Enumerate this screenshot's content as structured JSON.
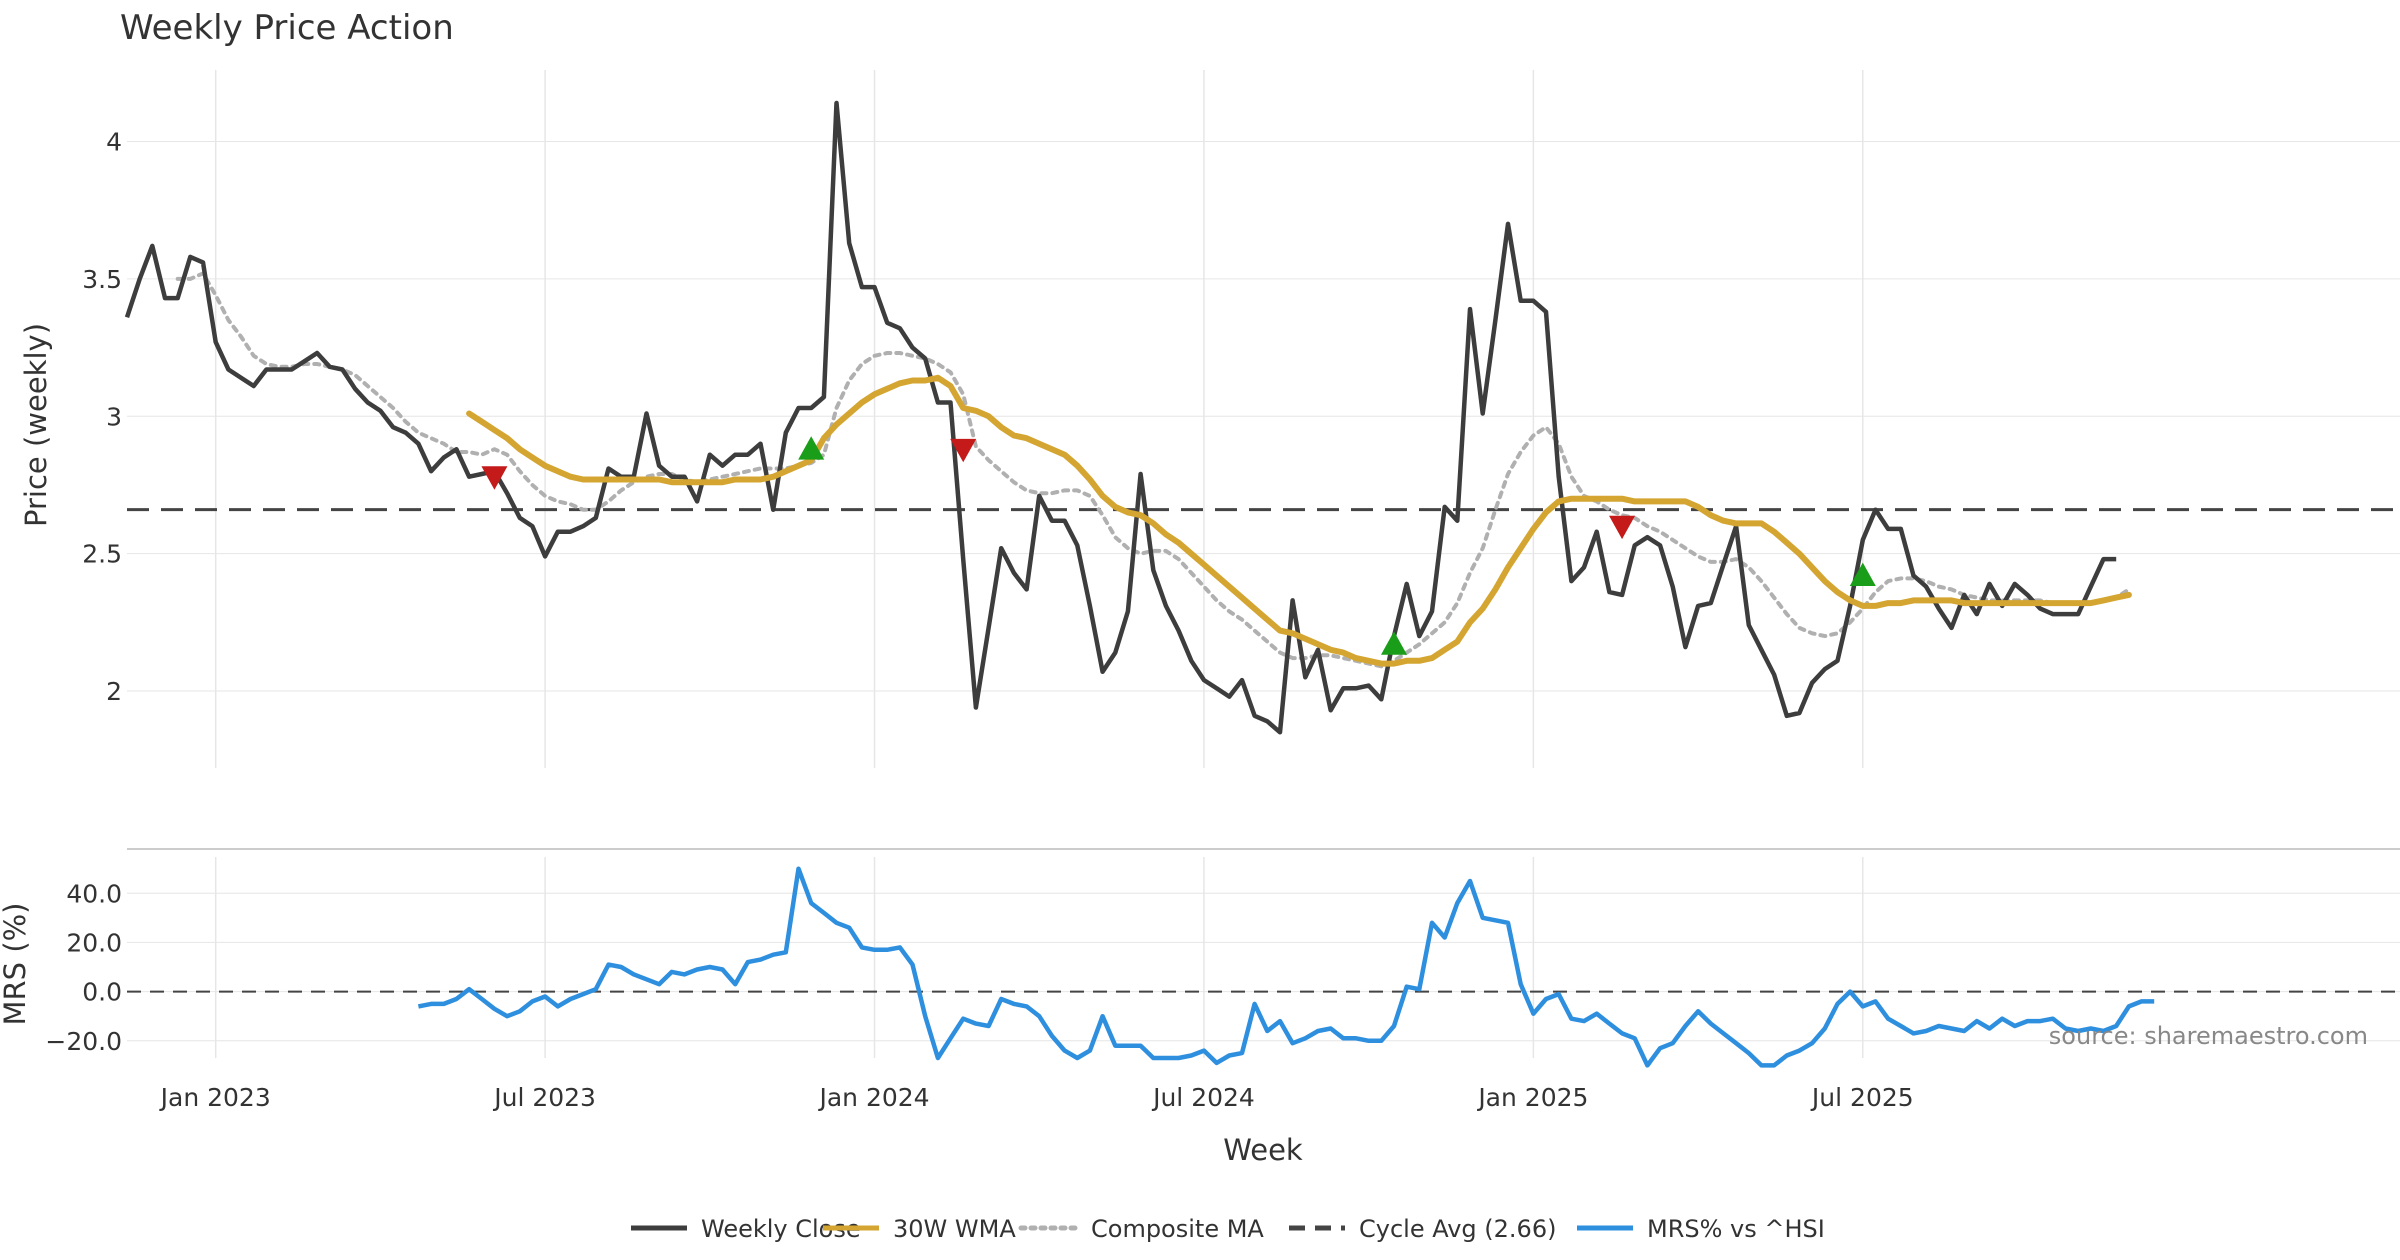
{
  "colors": {
    "close": "#3d3d3d",
    "wma": "#d4a530",
    "composite": "#b0b0b0",
    "cycle": "#444444",
    "mrs": "#2e8fdf",
    "buy": "#1a9e1a",
    "sell": "#c41a1a",
    "grid": "#e6e6e6"
  },
  "chart_data": [
    {
      "type": "line",
      "title": "Weekly Price Action",
      "xlabel": "",
      "ylabel": "Price (weekly)",
      "x_start": "2022-11-14",
      "x_step_days": 7,
      "ylim": [
        1.72,
        4.26
      ],
      "yticks": [
        2,
        2.5,
        3,
        3.5,
        4
      ],
      "ytick_labels": [
        "2",
        "2.5",
        "3",
        "3.5",
        "4"
      ],
      "grid": true,
      "series": [
        {
          "name": "Weekly Close",
          "values": [
            3.36,
            3.5,
            3.62,
            3.43,
            3.43,
            3.58,
            3.56,
            3.27,
            3.17,
            3.14,
            3.11,
            3.17,
            3.17,
            3.17,
            3.2,
            3.23,
            3.18,
            3.17,
            3.1,
            3.05,
            3.02,
            2.96,
            2.94,
            2.9,
            2.8,
            2.85,
            2.88,
            2.78,
            2.79,
            2.8,
            2.72,
            2.63,
            2.6,
            2.49,
            2.58,
            2.58,
            2.6,
            2.63,
            2.81,
            2.78,
            2.78,
            3.01,
            2.82,
            2.78,
            2.78,
            2.69,
            2.86,
            2.82,
            2.86,
            2.86,
            2.9,
            2.66,
            2.94,
            3.03,
            3.03,
            3.07,
            4.14,
            3.63,
            3.47,
            3.47,
            3.34,
            3.32,
            3.25,
            3.21,
            3.05,
            3.05,
            2.48,
            1.94,
            2.23,
            2.52,
            2.43,
            2.37,
            2.71,
            2.62,
            2.62,
            2.53,
            2.31,
            2.07,
            2.14,
            2.29,
            2.79,
            2.44,
            2.31,
            2.22,
            2.11,
            2.04,
            2.01,
            1.98,
            2.04,
            1.91,
            1.89,
            1.85,
            2.33,
            2.05,
            2.15,
            1.93,
            2.01,
            2.01,
            2.02,
            1.97,
            2.2,
            2.39,
            2.2,
            2.29,
            2.67,
            2.62,
            3.39,
            3.01,
            3.35,
            3.7,
            3.42,
            3.42,
            3.38,
            2.78,
            2.4,
            2.45,
            2.58,
            2.36,
            2.35,
            2.53,
            2.56,
            2.53,
            2.38,
            2.16,
            2.31,
            2.32,
            2.46,
            2.6,
            2.24,
            2.15,
            2.06,
            1.91,
            1.92,
            2.03,
            2.08,
            2.11,
            2.31,
            2.55,
            2.66,
            2.59,
            2.59,
            2.42,
            2.38,
            2.3,
            2.23,
            2.35,
            2.28,
            2.39,
            2.31,
            2.39,
            2.35,
            2.3,
            2.28,
            2.28,
            2.28,
            2.38,
            2.48,
            2.48
          ]
        },
        {
          "name": "30W WMA",
          "values": [
            null,
            null,
            null,
            null,
            null,
            null,
            null,
            null,
            null,
            null,
            null,
            null,
            null,
            null,
            null,
            null,
            null,
            null,
            null,
            null,
            null,
            null,
            null,
            null,
            null,
            null,
            null,
            3.01,
            2.98,
            2.95,
            2.92,
            2.88,
            2.85,
            2.82,
            2.8,
            2.78,
            2.77,
            2.77,
            2.77,
            2.77,
            2.77,
            2.77,
            2.77,
            2.76,
            2.76,
            2.76,
            2.76,
            2.76,
            2.77,
            2.77,
            2.77,
            2.78,
            2.8,
            2.82,
            2.84,
            2.92,
            2.97,
            3.01,
            3.05,
            3.08,
            3.1,
            3.12,
            3.13,
            3.13,
            3.14,
            3.11,
            3.03,
            3.02,
            3.0,
            2.96,
            2.93,
            2.92,
            2.9,
            2.88,
            2.86,
            2.82,
            2.77,
            2.71,
            2.67,
            2.65,
            2.64,
            2.61,
            2.57,
            2.54,
            2.5,
            2.46,
            2.42,
            2.38,
            2.34,
            2.3,
            2.26,
            2.22,
            2.21,
            2.19,
            2.17,
            2.15,
            2.14,
            2.12,
            2.11,
            2.1,
            2.1,
            2.11,
            2.11,
            2.12,
            2.15,
            2.18,
            2.25,
            2.3,
            2.37,
            2.45,
            2.52,
            2.59,
            2.65,
            2.69,
            2.7,
            2.7,
            2.7,
            2.7,
            2.7,
            2.69,
            2.69,
            2.69,
            2.69,
            2.69,
            2.67,
            2.64,
            2.62,
            2.61,
            2.61,
            2.61,
            2.58,
            2.54,
            2.5,
            2.45,
            2.4,
            2.36,
            2.33,
            2.31,
            2.31,
            2.32,
            2.32,
            2.33,
            2.33,
            2.33,
            2.33,
            2.32,
            2.32,
            2.32,
            2.32,
            2.32,
            2.32,
            2.32,
            2.32,
            2.32,
            2.32,
            2.32,
            2.33,
            2.34,
            2.35
          ]
        },
        {
          "name": "Composite MA",
          "values": [
            null,
            null,
            null,
            null,
            3.5,
            3.5,
            3.52,
            3.44,
            3.35,
            3.29,
            3.22,
            3.19,
            3.18,
            3.18,
            3.19,
            3.19,
            3.18,
            3.17,
            3.15,
            3.11,
            3.07,
            3.03,
            2.98,
            2.94,
            2.92,
            2.9,
            2.87,
            2.87,
            2.86,
            2.88,
            2.86,
            2.8,
            2.75,
            2.71,
            2.69,
            2.68,
            2.66,
            2.66,
            2.69,
            2.73,
            2.76,
            2.78,
            2.79,
            2.79,
            2.77,
            2.76,
            2.77,
            2.78,
            2.79,
            2.8,
            2.81,
            2.81,
            2.81,
            2.82,
            2.83,
            2.86,
            3.03,
            3.13,
            3.19,
            3.22,
            3.23,
            3.23,
            3.22,
            3.21,
            3.19,
            3.16,
            3.08,
            2.89,
            2.84,
            2.8,
            2.76,
            2.73,
            2.72,
            2.72,
            2.73,
            2.73,
            2.71,
            2.64,
            2.56,
            2.52,
            2.5,
            2.51,
            2.51,
            2.48,
            2.43,
            2.38,
            2.33,
            2.29,
            2.26,
            2.22,
            2.18,
            2.14,
            2.12,
            2.12,
            2.13,
            2.13,
            2.12,
            2.11,
            2.1,
            2.09,
            2.11,
            2.14,
            2.17,
            2.21,
            2.25,
            2.32,
            2.43,
            2.52,
            2.66,
            2.79,
            2.87,
            2.93,
            2.96,
            2.9,
            2.78,
            2.71,
            2.69,
            2.66,
            2.64,
            2.63,
            2.6,
            2.58,
            2.55,
            2.52,
            2.49,
            2.47,
            2.47,
            2.48,
            2.45,
            2.4,
            2.34,
            2.28,
            2.23,
            2.21,
            2.2,
            2.21,
            2.25,
            2.3,
            2.36,
            2.4,
            2.41,
            2.41,
            2.4,
            2.38,
            2.37,
            2.35,
            2.34,
            2.33,
            2.33,
            2.33,
            2.33,
            2.33,
            2.32,
            2.32,
            2.32,
            2.32,
            2.33,
            2.34,
            2.37
          ]
        },
        {
          "name": "Cycle Avg (2.66)",
          "constant": 2.66
        }
      ],
      "markers": [
        {
          "type": "sell",
          "week": 29,
          "price": 2.78
        },
        {
          "type": "buy",
          "week": 54,
          "price": 2.88
        },
        {
          "type": "sell",
          "week": 66,
          "price": 2.88
        },
        {
          "type": "buy",
          "week": 100,
          "price": 2.17
        },
        {
          "type": "sell",
          "week": 118,
          "price": 2.6
        },
        {
          "type": "buy",
          "week": 137,
          "price": 2.42
        }
      ]
    },
    {
      "type": "line",
      "title": "",
      "xlabel": "Week",
      "ylabel": "MRS (%)",
      "ylim": [
        -27,
        58
      ],
      "yticks": [
        -20,
        0,
        20,
        40
      ],
      "ytick_labels": [
        "−20.0",
        "0.0",
        "20.0",
        "40.0"
      ],
      "xtick_labels": [
        {
          "label": "Jan 2023",
          "date": "2023-01-02"
        },
        {
          "label": "Jul 2023",
          "date": "2023-07-03"
        },
        {
          "label": "Jan 2024",
          "date": "2024-01-01"
        },
        {
          "label": "Jul 2024",
          "date": "2024-07-01"
        },
        {
          "label": "Jan 2025",
          "date": "2024-12-30"
        },
        {
          "label": "Jul 2025",
          "date": "2025-06-30"
        }
      ],
      "series": [
        {
          "name": "MRS% vs ^HSI",
          "start_week": 23,
          "values": [
            -6,
            -5,
            -5,
            -3,
            1,
            -3,
            -7,
            -10,
            -8,
            -4,
            -2,
            -6,
            -3,
            -1,
            1,
            11,
            10,
            7,
            5,
            3,
            8,
            7,
            9,
            10,
            9,
            3,
            12,
            13,
            15,
            16,
            50,
            36,
            32,
            28,
            26,
            18,
            17,
            17,
            18,
            11,
            -10,
            -27,
            -19,
            -11,
            -13,
            -14,
            -3,
            -5,
            -6,
            -10,
            -18,
            -24,
            -27,
            -24,
            -10,
            -22,
            -22,
            -22,
            -27,
            -27,
            -27,
            -26,
            -24,
            -29,
            -26,
            -25,
            -5,
            -16,
            -12,
            -21,
            -19,
            -16,
            -15,
            -19,
            -19,
            -20,
            -20,
            -14,
            2,
            1,
            28,
            22,
            36,
            45,
            30,
            29,
            28,
            3,
            -9,
            -3,
            -1,
            -11,
            -12,
            -9,
            -13,
            -17,
            -19,
            -30,
            -23,
            -21,
            -14,
            -8,
            -13,
            -17,
            -21,
            -25,
            -30,
            -30,
            -26,
            -24,
            -21,
            -15,
            -5,
            0,
            -6,
            -4,
            -11,
            -14,
            -17,
            -16,
            -14,
            -15,
            -16,
            -12,
            -15,
            -11,
            -14,
            -12,
            -12,
            -11,
            -15,
            -16,
            -15,
            -16,
            -14,
            -6,
            -4,
            -4
          ]
        },
        {
          "name": "zero-line",
          "constant": 0
        }
      ]
    }
  ],
  "legend": {
    "items": [
      {
        "label": "Weekly Close",
        "style": "solid",
        "color": "#3d3d3d"
      },
      {
        "label": "30W WMA",
        "style": "solid",
        "color": "#d4a530"
      },
      {
        "label": "Composite MA",
        "style": "dotted",
        "color": "#b0b0b0"
      },
      {
        "label": "Cycle Avg (2.66)",
        "style": "dashed",
        "color": "#444444"
      },
      {
        "label": "MRS% vs ^HSI",
        "style": "solid",
        "color": "#2e8fdf"
      }
    ],
    "placement": "bottom-center"
  },
  "source_text": "source: sharemaestro.com"
}
